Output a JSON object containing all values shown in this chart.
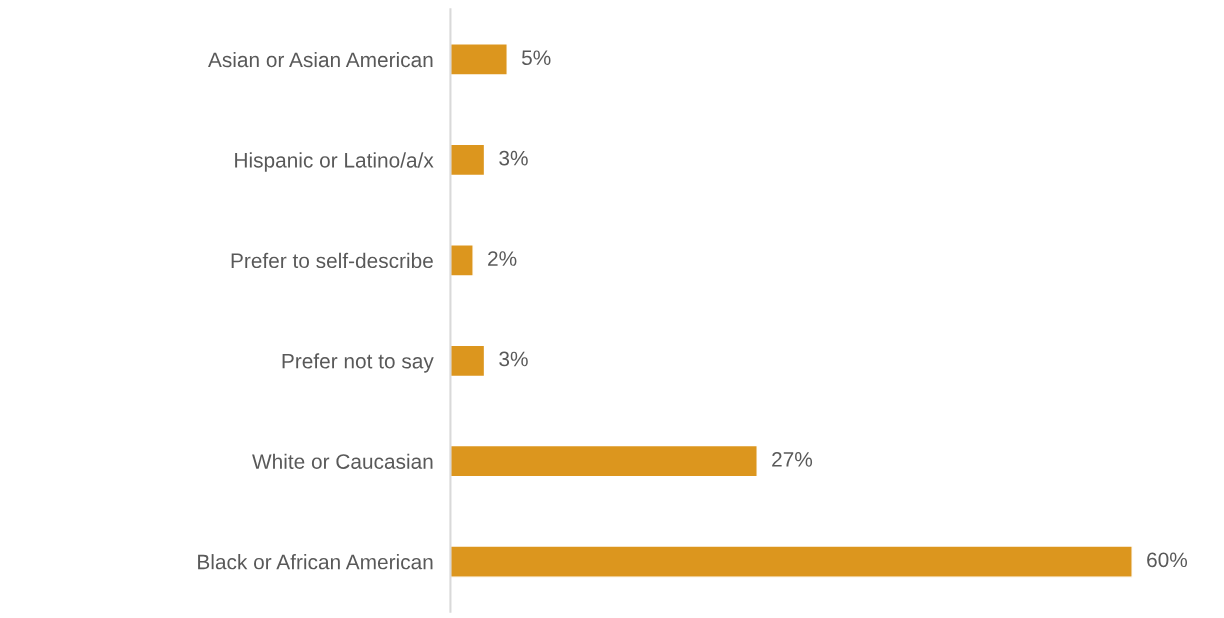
{
  "chart_data": {
    "type": "bar",
    "orientation": "horizontal",
    "categories": [
      "Asian or Asian American",
      "Hispanic or Latino/a/x",
      "Prefer to self-describe",
      "Prefer not to say",
      "White or Caucasian",
      "Black or African American"
    ],
    "values": [
      5,
      3,
      2,
      3,
      27,
      60
    ],
    "value_labels": [
      "5%",
      "3%",
      "2%",
      "3%",
      "27%",
      "60%"
    ],
    "color": "#dc961e",
    "grid": false,
    "legend": false,
    "tick_labels": "y"
  }
}
